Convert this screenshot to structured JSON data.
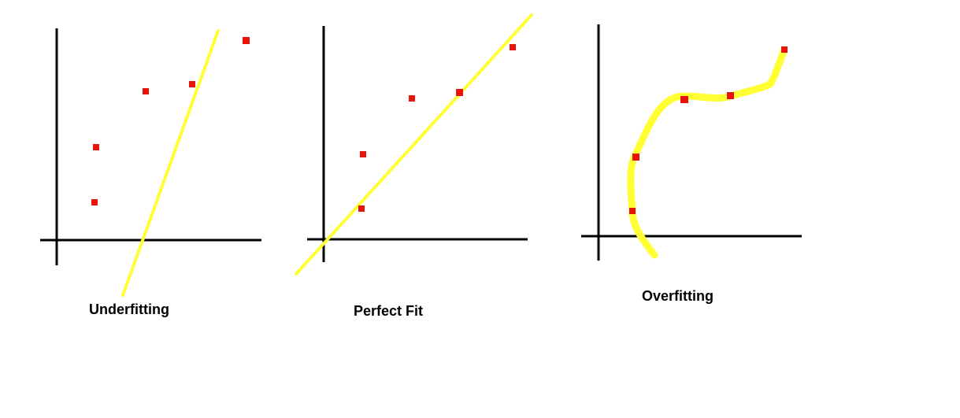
{
  "colors": {
    "background": "#ffffff",
    "axis": "#000000",
    "fit_curve": "#ffff33",
    "data_point": "#e8140c",
    "label_text": "#000000"
  },
  "panels": [
    {
      "id": "underfitting",
      "label": "Underfitting"
    },
    {
      "id": "perfect-fit",
      "label": "Perfect Fit"
    },
    {
      "id": "overfitting",
      "label": "Overfitting"
    }
  ]
}
